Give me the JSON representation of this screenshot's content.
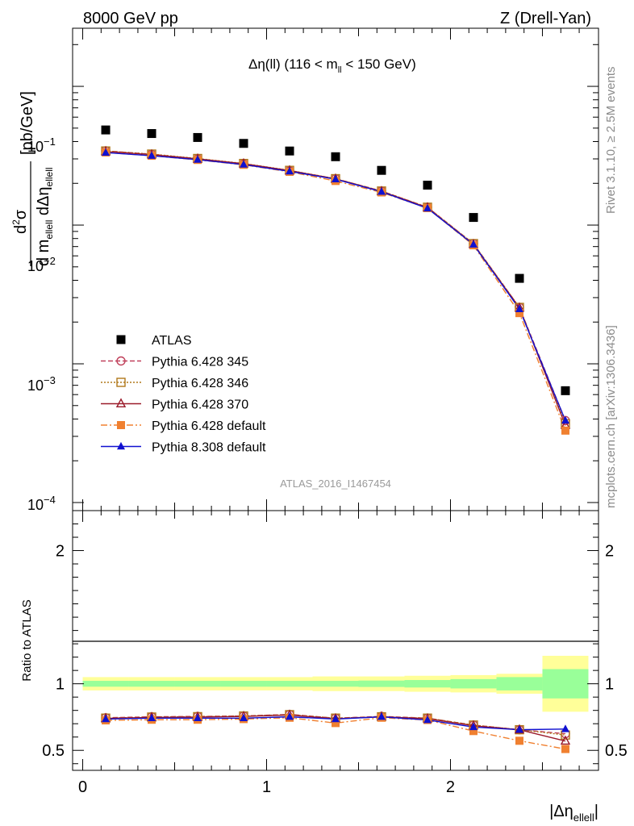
{
  "header": {
    "left": "8000 GeV pp",
    "right": "Z (Drell-Yan)"
  },
  "side_labels": {
    "rivet": "Rivet 3.1.10, ≥ 2.5M events",
    "mcplots": "mcplots.cern.ch [arXiv:1306.3436]"
  },
  "watermark": "ATLAS_2016_I1467454",
  "chart_data": [
    {
      "type": "scatter",
      "title": "Δη(ll) (116 < m_ll < 150 GeV)",
      "ylabel": "d²σ / d m_ellell dΔη_ellell [pb/GeV]",
      "yscale": "log",
      "ylim": [
        0.0001,
        0.3
      ],
      "xlim": [
        -0.055,
        2.805
      ],
      "grid": false,
      "legend_position": "lower-left",
      "y_tick_labels": [
        "10⁻¹",
        "10⁻²",
        "10⁻³",
        "10⁻⁴"
      ],
      "x": [
        0.125,
        0.375,
        0.625,
        0.875,
        1.125,
        1.375,
        1.625,
        1.875,
        2.125,
        2.375,
        2.625
      ],
      "series": [
        {
          "name": "ATLAS",
          "color": "#000000",
          "marker": "square",
          "values": [
            0.0485,
            0.0457,
            0.0428,
            0.0388,
            0.0342,
            0.0311,
            0.0248,
            0.0194,
            0.01135,
            0.00413,
            0.00064
          ]
        },
        {
          "name": "Pythia 6.428 345",
          "color": "#c0405a",
          "marker": "open-circle",
          "line": "dashed",
          "values": [
            0.0343,
            0.0324,
            0.0301,
            0.0277,
            0.0247,
            0.0216,
            0.0176,
            0.01345,
            0.00735,
            0.00255,
            0.00039
          ]
        },
        {
          "name": "Pythia 6.428 346",
          "color": "#b0781a",
          "marker": "open-square",
          "line": "dotted",
          "values": [
            0.0342,
            0.0325,
            0.0302,
            0.0278,
            0.0248,
            0.0216,
            0.0176,
            0.01345,
            0.00735,
            0.00255,
            0.00037
          ]
        },
        {
          "name": "Pythia 6.428 370",
          "color": "#9a1a2a",
          "marker": "open-triangle",
          "line": "solid",
          "values": [
            0.0339,
            0.0322,
            0.03,
            0.0277,
            0.0247,
            0.0215,
            0.0175,
            0.01335,
            0.00725,
            0.00253,
            0.00036
          ]
        },
        {
          "name": "Pythia 6.428 default",
          "color": "#f08030",
          "marker": "filled-square",
          "line": "dashdot",
          "values": [
            0.0334,
            0.0316,
            0.0295,
            0.0272,
            0.0242,
            0.0208,
            0.0172,
            0.01325,
            0.00715,
            0.00232,
            0.00033
          ]
        },
        {
          "name": "Pythia 8.308 default",
          "color": "#1010d0",
          "marker": "filled-triangle",
          "line": "solid",
          "values": [
            0.0333,
            0.0316,
            0.0296,
            0.0273,
            0.0244,
            0.0214,
            0.0174,
            0.0132,
            0.00725,
            0.00248,
            0.00039
          ]
        }
      ]
    },
    {
      "type": "line",
      "ylabel": "Ratio to ATLAS",
      "xlabel": "|Δη_ellell|",
      "xlim": [
        -0.055,
        2.805
      ],
      "ylim": [
        0.35,
        2.3
      ],
      "x_ticks": [
        0,
        1,
        2
      ],
      "y_ticks": [
        0.5,
        1,
        2
      ],
      "x": [
        0.125,
        0.375,
        0.625,
        0.875,
        1.125,
        1.375,
        1.625,
        1.875,
        2.125,
        2.375,
        2.625
      ],
      "bands": {
        "edges": [
          0,
          0.25,
          0.5,
          0.75,
          1.0,
          1.25,
          1.5,
          1.75,
          2.0,
          2.25,
          2.5,
          2.75
        ],
        "stat_halfwidth": [
          0.022,
          0.022,
          0.022,
          0.022,
          0.022,
          0.022,
          0.024,
          0.028,
          0.035,
          0.05,
          0.11
        ],
        "total_halfwidth": [
          0.05,
          0.05,
          0.05,
          0.05,
          0.05,
          0.055,
          0.055,
          0.06,
          0.065,
          0.075,
          0.21
        ]
      },
      "series": [
        {
          "name": "Pythia 6.428 345",
          "values": [
            0.745,
            0.752,
            0.755,
            0.758,
            0.77,
            0.742,
            0.755,
            0.742,
            0.69,
            0.655,
            0.625
          ]
        },
        {
          "name": "Pythia 6.428 346",
          "values": [
            0.742,
            0.75,
            0.753,
            0.758,
            0.768,
            0.742,
            0.752,
            0.742,
            0.69,
            0.655,
            0.615
          ]
        },
        {
          "name": "Pythia 6.428 370",
          "values": [
            0.74,
            0.748,
            0.75,
            0.755,
            0.765,
            0.738,
            0.752,
            0.738,
            0.685,
            0.655,
            0.57
          ]
        },
        {
          "name": "Pythia 6.428 default",
          "values": [
            0.725,
            0.73,
            0.73,
            0.735,
            0.745,
            0.705,
            0.745,
            0.728,
            0.645,
            0.572,
            0.51
          ]
        },
        {
          "name": "Pythia 8.308 default",
          "values": [
            0.735,
            0.742,
            0.742,
            0.742,
            0.752,
            0.735,
            0.752,
            0.728,
            0.675,
            0.655,
            0.66
          ]
        }
      ]
    }
  ]
}
